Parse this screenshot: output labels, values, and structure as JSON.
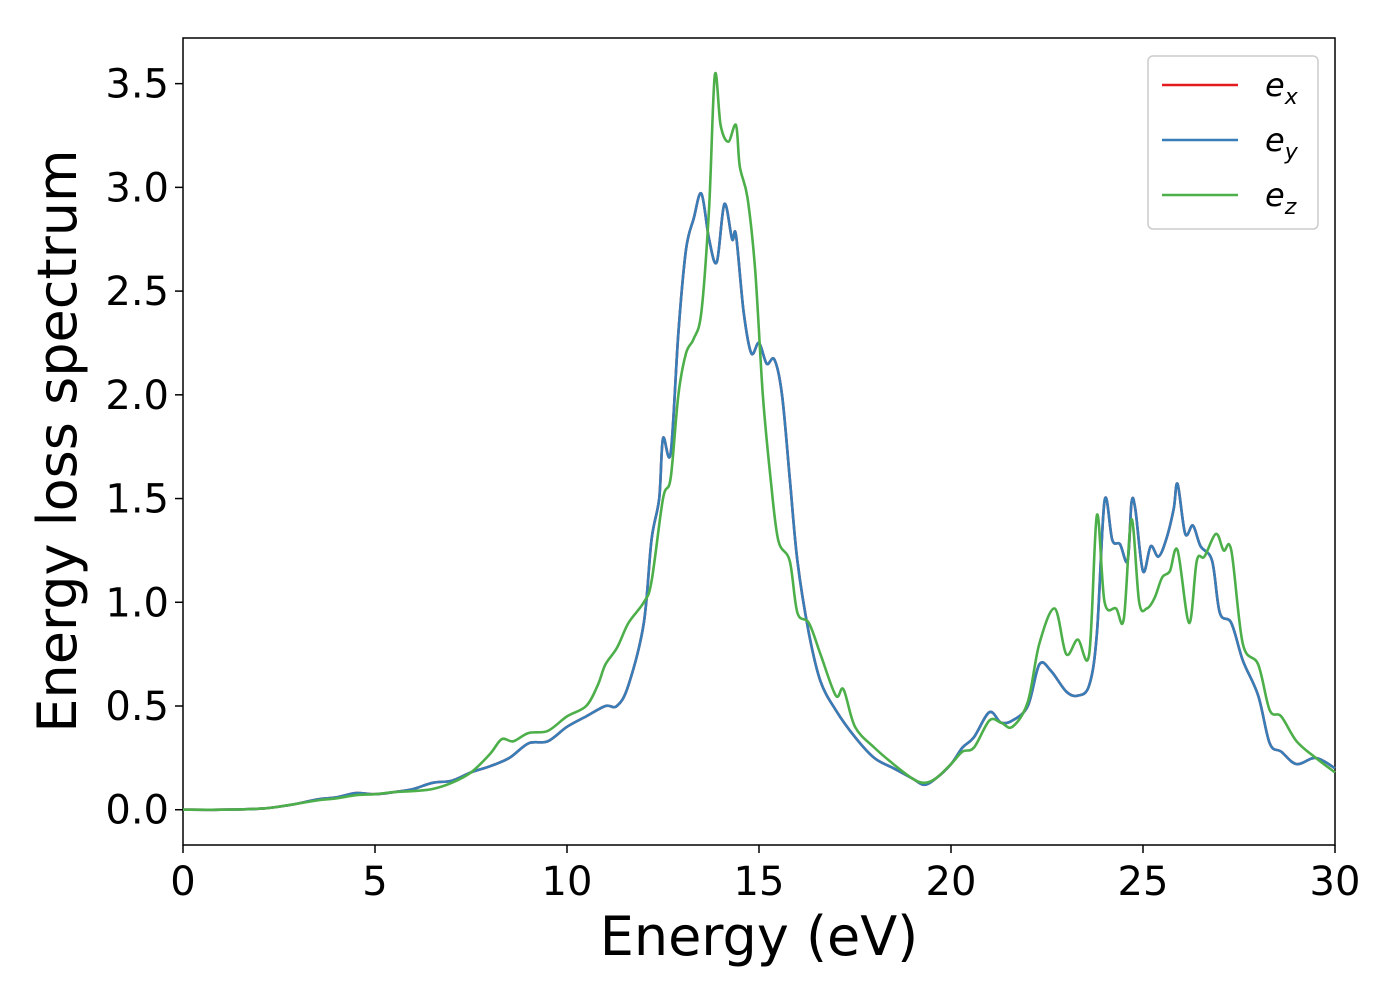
{
  "chart_data": {
    "type": "line",
    "xlabel": "Energy (eV)",
    "ylabel": "Energy loss spectrum",
    "xlim": [
      0,
      30
    ],
    "ylim": [
      -0.17,
      3.72
    ],
    "xticks": [
      0,
      5,
      10,
      15,
      20,
      25,
      30
    ],
    "yticks": [
      0.0,
      0.5,
      1.0,
      1.5,
      2.0,
      2.5,
      3.0,
      3.5
    ],
    "xtick_labels": [
      "0",
      "5",
      "10",
      "15",
      "20",
      "25",
      "30"
    ],
    "ytick_labels": [
      "0.0",
      "0.5",
      "1.0",
      "1.5",
      "2.0",
      "2.5",
      "3.0",
      "3.5"
    ],
    "grid": false,
    "legend_position": "top-right",
    "series": [
      {
        "name": "e_x",
        "legend_base": "e",
        "legend_sub": "x",
        "color": "#e41a1c",
        "x": [
          0,
          1,
          2,
          2.5,
          3,
          3.5,
          4,
          4.5,
          5,
          5.5,
          6,
          6.5,
          7,
          7.5,
          8,
          8.5,
          9,
          9.5,
          10,
          10.5,
          11,
          11.3,
          11.6,
          12,
          12.2,
          12.4,
          12.5,
          12.7,
          12.9,
          13.1,
          13.3,
          13.5,
          13.7,
          13.9,
          14.1,
          14.3,
          14.4,
          14.6,
          14.8,
          15.0,
          15.2,
          15.4,
          15.6,
          15.8,
          16.0,
          16.3,
          16.6,
          17.0,
          17.5,
          18,
          18.5,
          19,
          19.3,
          19.6,
          20,
          20.3,
          20.6,
          21,
          21.3,
          21.6,
          22,
          22.3,
          22.6,
          23,
          23.3,
          23.6,
          23.8,
          24.0,
          24.2,
          24.4,
          24.6,
          24.7,
          24.8,
          25.0,
          25.2,
          25.4,
          25.6,
          25.8,
          25.9,
          26.1,
          26.3,
          26.5,
          26.8,
          27.0,
          27.3,
          27.6,
          28.0,
          28.3,
          28.6,
          29,
          29.5,
          30
        ],
        "y": [
          0,
          0,
          0.005,
          0.015,
          0.03,
          0.05,
          0.06,
          0.08,
          0.075,
          0.085,
          0.1,
          0.13,
          0.14,
          0.18,
          0.21,
          0.25,
          0.32,
          0.33,
          0.4,
          0.45,
          0.5,
          0.5,
          0.6,
          0.9,
          1.3,
          1.5,
          1.79,
          1.72,
          2.3,
          2.7,
          2.85,
          2.97,
          2.75,
          2.64,
          2.92,
          2.75,
          2.77,
          2.4,
          2.2,
          2.25,
          2.15,
          2.17,
          2.0,
          1.6,
          1.2,
          0.85,
          0.62,
          0.48,
          0.35,
          0.25,
          0.2,
          0.15,
          0.12,
          0.15,
          0.22,
          0.3,
          0.35,
          0.47,
          0.42,
          0.43,
          0.5,
          0.7,
          0.67,
          0.57,
          0.55,
          0.6,
          0.85,
          1.49,
          1.3,
          1.28,
          1.2,
          1.48,
          1.45,
          1.15,
          1.27,
          1.22,
          1.3,
          1.45,
          1.57,
          1.33,
          1.37,
          1.27,
          1.2,
          0.95,
          0.9,
          0.72,
          0.55,
          0.32,
          0.28,
          0.22,
          0.25,
          0.2
        ]
      },
      {
        "name": "e_y",
        "legend_base": "e",
        "legend_sub": "y",
        "color": "#377eb8",
        "x": [
          0,
          1,
          2,
          2.5,
          3,
          3.5,
          4,
          4.5,
          5,
          5.5,
          6,
          6.5,
          7,
          7.5,
          8,
          8.5,
          9,
          9.5,
          10,
          10.5,
          11,
          11.3,
          11.6,
          12,
          12.2,
          12.4,
          12.5,
          12.7,
          12.9,
          13.1,
          13.3,
          13.5,
          13.7,
          13.9,
          14.1,
          14.3,
          14.4,
          14.6,
          14.8,
          15.0,
          15.2,
          15.4,
          15.6,
          15.8,
          16.0,
          16.3,
          16.6,
          17.0,
          17.5,
          18,
          18.5,
          19,
          19.3,
          19.6,
          20,
          20.3,
          20.6,
          21,
          21.3,
          21.6,
          22,
          22.3,
          22.6,
          23,
          23.3,
          23.6,
          23.8,
          24.0,
          24.2,
          24.4,
          24.6,
          24.7,
          24.8,
          25.0,
          25.2,
          25.4,
          25.6,
          25.8,
          25.9,
          26.1,
          26.3,
          26.5,
          26.8,
          27.0,
          27.3,
          27.6,
          28.0,
          28.3,
          28.6,
          29,
          29.5,
          30
        ],
        "y": [
          0,
          0,
          0.005,
          0.015,
          0.03,
          0.05,
          0.06,
          0.08,
          0.075,
          0.085,
          0.1,
          0.13,
          0.14,
          0.18,
          0.21,
          0.25,
          0.32,
          0.33,
          0.4,
          0.45,
          0.5,
          0.5,
          0.6,
          0.9,
          1.3,
          1.5,
          1.79,
          1.72,
          2.3,
          2.7,
          2.85,
          2.97,
          2.75,
          2.64,
          2.92,
          2.75,
          2.77,
          2.4,
          2.2,
          2.25,
          2.15,
          2.17,
          2.0,
          1.6,
          1.2,
          0.85,
          0.62,
          0.48,
          0.35,
          0.25,
          0.2,
          0.15,
          0.12,
          0.15,
          0.22,
          0.3,
          0.35,
          0.47,
          0.42,
          0.43,
          0.5,
          0.7,
          0.67,
          0.57,
          0.55,
          0.6,
          0.85,
          1.49,
          1.3,
          1.28,
          1.2,
          1.48,
          1.45,
          1.15,
          1.27,
          1.22,
          1.3,
          1.45,
          1.57,
          1.33,
          1.37,
          1.27,
          1.2,
          0.95,
          0.9,
          0.72,
          0.55,
          0.32,
          0.28,
          0.22,
          0.25,
          0.2
        ]
      },
      {
        "name": "e_z",
        "legend_base": "e",
        "legend_sub": "z",
        "color": "#4daf4a",
        "x": [
          0,
          1,
          2,
          2.5,
          3,
          3.5,
          4,
          4.5,
          5,
          5.5,
          6,
          6.5,
          7,
          7.5,
          8,
          8.3,
          8.6,
          9,
          9.5,
          10,
          10.5,
          10.8,
          11,
          11.3,
          11.6,
          12,
          12.2,
          12.5,
          12.7,
          12.9,
          13.1,
          13.3,
          13.5,
          13.7,
          13.85,
          14.0,
          14.2,
          14.4,
          14.5,
          14.7,
          14.9,
          15.1,
          15.3,
          15.5,
          15.8,
          16.0,
          16.3,
          16.6,
          17.0,
          17.2,
          17.5,
          18,
          18.5,
          19,
          19.3,
          19.6,
          20,
          20.3,
          20.6,
          21,
          21.3,
          21.6,
          22,
          22.3,
          22.7,
          23,
          23.3,
          23.6,
          23.8,
          24.0,
          24.3,
          24.5,
          24.7,
          24.9,
          25.1,
          25.3,
          25.5,
          25.7,
          25.9,
          26.2,
          26.4,
          26.6,
          26.9,
          27.1,
          27.3,
          27.6,
          28.0,
          28.3,
          28.6,
          29,
          29.5,
          30
        ],
        "y": [
          0,
          0,
          0.005,
          0.015,
          0.03,
          0.045,
          0.055,
          0.07,
          0.075,
          0.085,
          0.09,
          0.1,
          0.13,
          0.18,
          0.27,
          0.34,
          0.33,
          0.37,
          0.38,
          0.45,
          0.5,
          0.6,
          0.7,
          0.78,
          0.9,
          1.0,
          1.1,
          1.5,
          1.6,
          2.0,
          2.2,
          2.27,
          2.4,
          2.9,
          3.54,
          3.3,
          3.22,
          3.3,
          3.1,
          2.95,
          2.6,
          2.0,
          1.6,
          1.3,
          1.2,
          0.95,
          0.9,
          0.75,
          0.55,
          0.58,
          0.4,
          0.3,
          0.22,
          0.15,
          0.13,
          0.15,
          0.22,
          0.28,
          0.3,
          0.43,
          0.42,
          0.4,
          0.52,
          0.8,
          0.97,
          0.75,
          0.82,
          0.75,
          1.42,
          1.0,
          0.97,
          0.92,
          1.4,
          1.0,
          0.97,
          1.02,
          1.12,
          1.15,
          1.25,
          0.9,
          1.2,
          1.22,
          1.33,
          1.25,
          1.25,
          0.8,
          0.7,
          0.48,
          0.45,
          0.33,
          0.25,
          0.18
        ]
      }
    ]
  }
}
